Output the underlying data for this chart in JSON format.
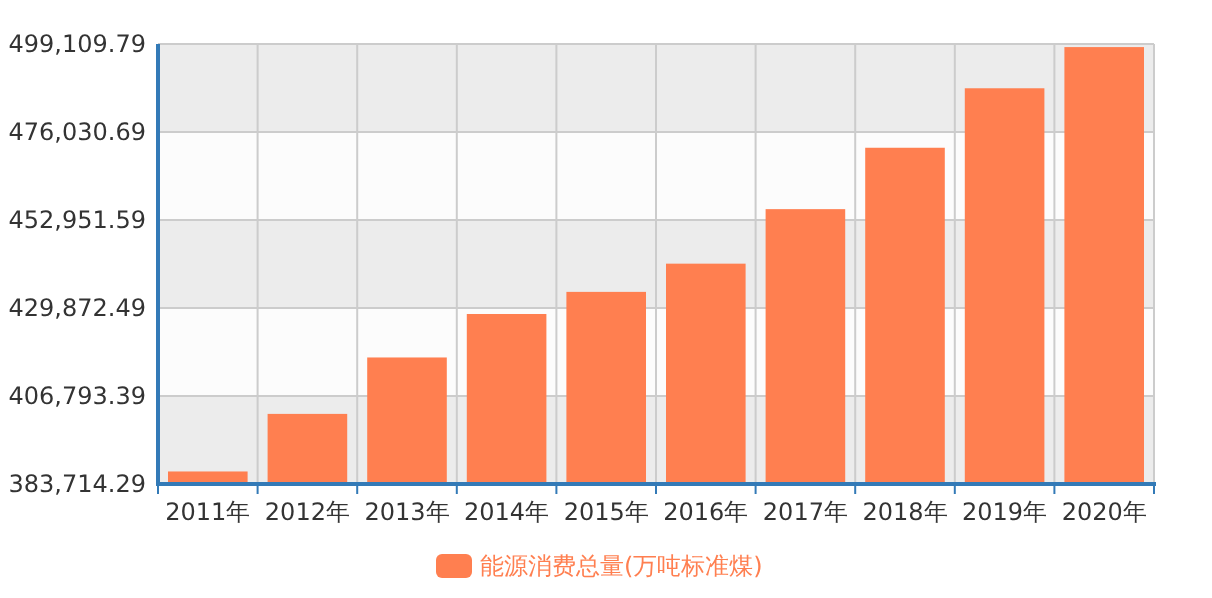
{
  "chart_data": {
    "type": "bar",
    "categories": [
      "2011年",
      "2012年",
      "2013年",
      "2014年",
      "2015年",
      "2016年",
      "2017年",
      "2018年",
      "2019年",
      "2020年"
    ],
    "series": [
      {
        "name": "能源消费总量(万吨标准煤)",
        "color": "#ff7f50",
        "values": [
          387000,
          402100,
          416900,
          428300,
          434100,
          441500,
          455800,
          471900,
          487500,
          498300
        ]
      }
    ],
    "ylim": [
      383714.29,
      499109.79
    ],
    "yticks": [
      {
        "value": 383714.29,
        "label": "383,714.29"
      },
      {
        "value": 406793.39,
        "label": "406,793.39"
      },
      {
        "value": 429872.49,
        "label": "429,872.49"
      },
      {
        "value": 452951.59,
        "label": "452,951.59"
      },
      {
        "value": 476030.69,
        "label": "476,030.69"
      },
      {
        "value": 499109.79,
        "label": "499,109.79"
      }
    ],
    "grid": true,
    "legend": "bottom"
  }
}
